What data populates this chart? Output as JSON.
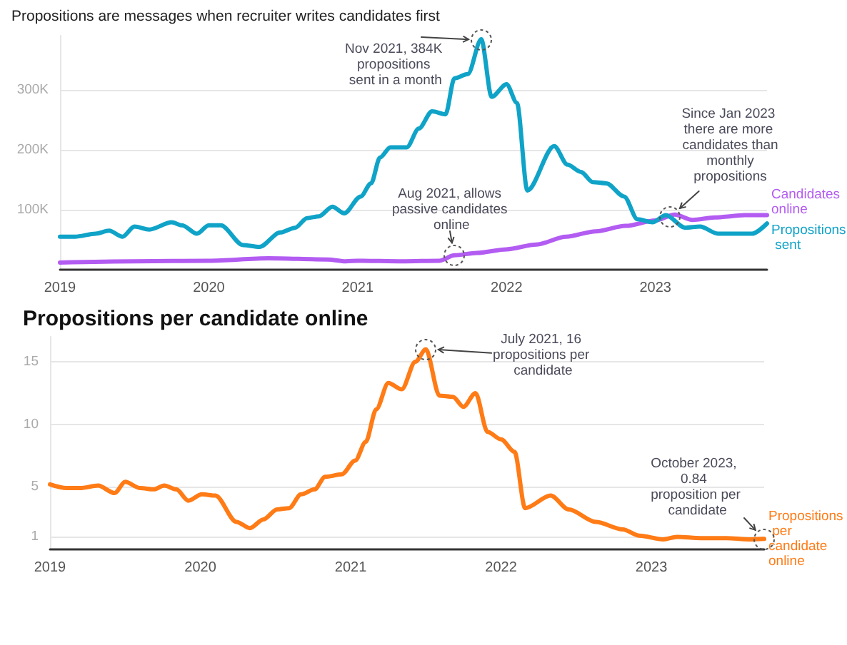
{
  "chart_data": [
    {
      "type": "line",
      "subtitle": "Propositions are messages when recruiter writes candidates first",
      "xlim": [
        2019,
        2023.75
      ],
      "xticks": [
        2019,
        2020,
        2021,
        2022,
        2023
      ],
      "ylim": [
        0,
        390
      ],
      "yticks": [
        {
          "value": 100,
          "label": "100K"
        },
        {
          "value": 200,
          "label": "200K"
        },
        {
          "value": 300,
          "label": "300K"
        }
      ],
      "grid": "y",
      "legend": false,
      "series": [
        {
          "name": "Candidates online",
          "color": "#b35cf2",
          "x": [
            2019.0,
            2019.5,
            2020.0,
            2020.4,
            2020.8,
            2020.92,
            2021.0,
            2021.3,
            2021.55,
            2021.65,
            2021.8,
            2022.0,
            2022.2,
            2022.4,
            2022.6,
            2022.8,
            2023.0,
            2023.13,
            2023.25,
            2023.4,
            2023.6,
            2023.75
          ],
          "values": [
            12,
            14,
            15,
            19,
            17,
            14,
            15,
            14,
            15,
            24,
            28,
            34,
            42,
            55,
            64,
            73,
            82,
            92,
            83,
            87,
            91,
            91
          ]
        },
        {
          "name": "Propositions sent",
          "color": "#10a3c8",
          "x": [
            2019.0,
            2019.1,
            2019.24,
            2019.33,
            2019.42,
            2019.5,
            2019.6,
            2019.75,
            2019.82,
            2019.92,
            2020.0,
            2020.08,
            2020.23,
            2020.34,
            2020.48,
            2020.58,
            2020.66,
            2020.74,
            2020.83,
            2020.91,
            2021.02,
            2021.09,
            2021.15,
            2021.22,
            2021.33,
            2021.41,
            2021.5,
            2021.59,
            2021.65,
            2021.74,
            2021.83,
            2021.9,
            2022.0,
            2022.07,
            2022.14,
            2022.32,
            2022.41,
            2022.5,
            2022.58,
            2022.67,
            2022.79,
            2022.88,
            2022.98,
            2023.07,
            2023.2,
            2023.3,
            2023.42,
            2023.65,
            2023.75
          ],
          "values": [
            55,
            55,
            60,
            65,
            55,
            72,
            67,
            79,
            74,
            60,
            74,
            74,
            41,
            38,
            62,
            70,
            86,
            89,
            105,
            94,
            122,
            144,
            187,
            204,
            204,
            235,
            264,
            259,
            319,
            326,
            384,
            288,
            309,
            278,
            132,
            206,
            175,
            163,
            146,
            144,
            122,
            84,
            79,
            91,
            70,
            72,
            60,
            60,
            77
          ]
        }
      ],
      "annotations": [
        {
          "text": "Nov 2021, 384K propositions sent in a month",
          "x": 2021.83,
          "y": 384
        },
        {
          "text": "Aug 2021, allows passive candidates online",
          "x": 2021.65,
          "y": 24
        },
        {
          "text": "Since Jan 2023 there are more candidates than monthly propositions",
          "x": 2023.1,
          "y": 88
        }
      ]
    },
    {
      "type": "line",
      "title": "Propositions per candidate online",
      "xlim": [
        2019,
        2023.75
      ],
      "xticks": [
        2019,
        2020,
        2021,
        2022,
        2023
      ],
      "ylim": [
        0,
        17
      ],
      "yticks": [
        1,
        5,
        10,
        15
      ],
      "grid": "y",
      "legend": false,
      "series": [
        {
          "name": "Propositions per candidate online",
          "color": "#ff7b16",
          "x": [
            2019.0,
            2019.11,
            2019.2,
            2019.32,
            2019.43,
            2019.5,
            2019.6,
            2019.69,
            2019.76,
            2019.84,
            2019.92,
            2020.01,
            2020.1,
            2020.24,
            2020.33,
            2020.42,
            2020.51,
            2020.59,
            2020.67,
            2020.76,
            2020.83,
            2020.94,
            2021.03,
            2021.1,
            2021.17,
            2021.25,
            2021.34,
            2021.43,
            2021.5,
            2021.59,
            2021.68,
            2021.75,
            2021.83,
            2021.91,
            2022.0,
            2022.09,
            2022.16,
            2022.33,
            2022.45,
            2022.63,
            2022.81,
            2022.92,
            2023.08,
            2023.17,
            2023.33,
            2023.5,
            2023.65,
            2023.75
          ],
          "values": [
            5.2,
            4.9,
            4.9,
            5.1,
            4.5,
            5.4,
            4.9,
            4.8,
            5.1,
            4.8,
            3.9,
            4.4,
            4.3,
            2.2,
            1.7,
            2.4,
            3.2,
            3.3,
            4.4,
            4.8,
            5.8,
            6.0,
            7.1,
            8.6,
            11.2,
            13.3,
            12.8,
            15.0,
            16.0,
            12.3,
            12.2,
            11.4,
            12.5,
            9.4,
            8.8,
            7.8,
            3.3,
            4.3,
            3.2,
            2.2,
            1.6,
            1.1,
            0.8,
            1.0,
            0.9,
            0.9,
            0.8,
            0.84
          ]
        }
      ],
      "annotations": [
        {
          "text": "July 2021, 16 propositions per candidate",
          "x": 2021.5,
          "y": 16
        },
        {
          "text": "October 2023, 0.84 proposition per candidate",
          "x": 2023.75,
          "y": 0.84
        }
      ]
    }
  ]
}
